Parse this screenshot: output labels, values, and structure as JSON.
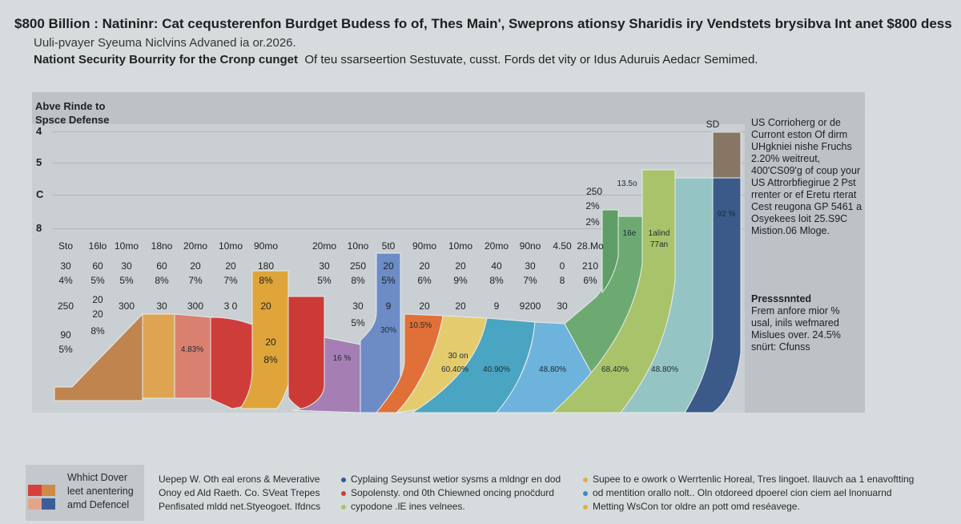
{
  "header": {
    "title": "$800 Billion : Natininr: Cat cequsterenfon Burdget Budess fo of,  Thes Main', Sweprons ationsy Sharidis iry Vendstets brysibva  Int anet $800 dess",
    "subtitle": "Uuli-pvayer Syeuma Niclvins Advaned ia or.2026.",
    "subtitle2_bold": "Nationt Security Bourrity for the Cronp cunget",
    "subtitle2_rest": "Of teu ssarseertion Sestuvate, cusst. Fords det vity or Idus Aduruis Aedacr Semimed."
  },
  "chart_data": {
    "type": "area",
    "title": "Abve Rinde to Spsce Defense",
    "y_ticks": [
      "4",
      "5",
      "C",
      "8"
    ],
    "grid": true,
    "categories": [
      "Sto",
      "16lo",
      "10mo",
      "18no",
      "20mo",
      "10mo",
      "90mo",
      "20mo",
      "10no",
      "5t0",
      "90mo",
      "10mo",
      "20mo",
      "90no",
      "4.50",
      "28.Mo"
    ],
    "rows": [
      [
        "30",
        "60",
        "30",
        "60",
        "20",
        "20",
        "180",
        "30",
        "250",
        "20",
        "20",
        "20",
        "40",
        "30",
        "0",
        "210"
      ],
      [
        "4%",
        "5%",
        "5%",
        "8%",
        "7%",
        "7%",
        "8%",
        "5%",
        "8%",
        "5%",
        "6%",
        "9%",
        "8%",
        "7%",
        "8",
        "6%"
      ],
      [
        "250",
        "20",
        "300",
        "30",
        "300",
        "3 0",
        "20",
        "",
        "30",
        "9",
        "20",
        "20",
        "9",
        "9200",
        "30",
        ""
      ]
    ],
    "extra_values": [
      "20",
      "8%",
      "90",
      "5%",
      "5%"
    ],
    "upper_labels": [
      "250",
      "2%",
      "2%",
      "13.5o",
      "SD"
    ],
    "segments": [
      {
        "label": "",
        "color": "#c0844f"
      },
      {
        "label": "",
        "color": "#dea451"
      },
      {
        "label": "4.83%",
        "color": "#d98070"
      },
      {
        "label": "",
        "color": "#cf3d3a"
      },
      {
        "label": "20",
        "color": "#dfa53a"
      },
      {
        "label": "",
        "color": "#cc3a37"
      },
      {
        "label": "16 %",
        "color": "#a57fb4"
      },
      {
        "label": "30%",
        "color": "#6d8cc6"
      },
      {
        "label": "10.5%",
        "color": "#e07038"
      },
      {
        "label": "60.40%",
        "color": "#e4cc6e"
      },
      {
        "label": "40.90%",
        "color": "#4aa5c2"
      },
      {
        "label": "48.80%",
        "color": "#6db3dc"
      },
      {
        "label": "68.40%",
        "color": "#6daa72"
      },
      {
        "label": "16e",
        "color": "#5e9e66"
      },
      {
        "label": "1alind 77an",
        "color": "#a8c36a"
      },
      {
        "label": "48.80%",
        "color": "#95c4c4"
      },
      {
        "label": "92 %",
        "color": "#3b5a8a"
      },
      {
        "label": "",
        "color": "#877664"
      }
    ],
    "segment_extra": {
      "gold_pct": "8%",
      "yellow_top": "30 on"
    }
  },
  "side": {
    "block1": "US Corrioherg or de Curront eston Of dirm UHgkniei nishe Fruchs 2.20% weitreut, 400'CS09'g of coup your US Attrorbfiegirue 2 Pst rrenter or ef Eretu rterat Cest reugona GP 5461 a Osyekees loit 25.S9C Mistion.06 Mloge.",
    "block2_title": "Presssnnted",
    "block2": "Frem anfore mior % usal, inils wefmared Mislues over. 24.5% snürt: Cfunss"
  },
  "legend": {
    "box_text": [
      "Whhict Dover",
      "leet anentering",
      "amd Defencel"
    ],
    "swatch_colors": [
      "#d6403a",
      "#cf8a48",
      "#e3a58a",
      "#3c5d98"
    ],
    "col1": [
      "Uepep W. Oth eal erons & Meverative",
      "Onoy ed Ald Raeth. Co. SVeat Trepes",
      "Penfisated mldd net.Styeogoet. Ifdncs"
    ],
    "col2": [
      {
        "text": "Cyplaing Seysunst wetior sysms a mldngr en dod",
        "color": "#3a57a0"
      },
      {
        "text": "Sopolensty. ond 0th Chiewned oncing pnoc̈durd",
        "color": "#d03a3a"
      },
      {
        "text": "cypodone .lE ines velnees.",
        "color": "#a8c36a"
      }
    ],
    "col3": [
      {
        "text": "Supee to e owork o Werrtenlic Horeal, Tres lingoet. Ilauvch aa 1 enavoftting",
        "color": "#e0b040"
      },
      {
        "text": "od mentition orallo  nolt.. Oln otdoreed  dpoerel cion  ciem ael lnonuarnd",
        "color": "#3a8ac0"
      },
      {
        "text": "Metting WsCon tor oldre an pott omd reséavege.",
        "color": "#e0b040"
      }
    ]
  }
}
